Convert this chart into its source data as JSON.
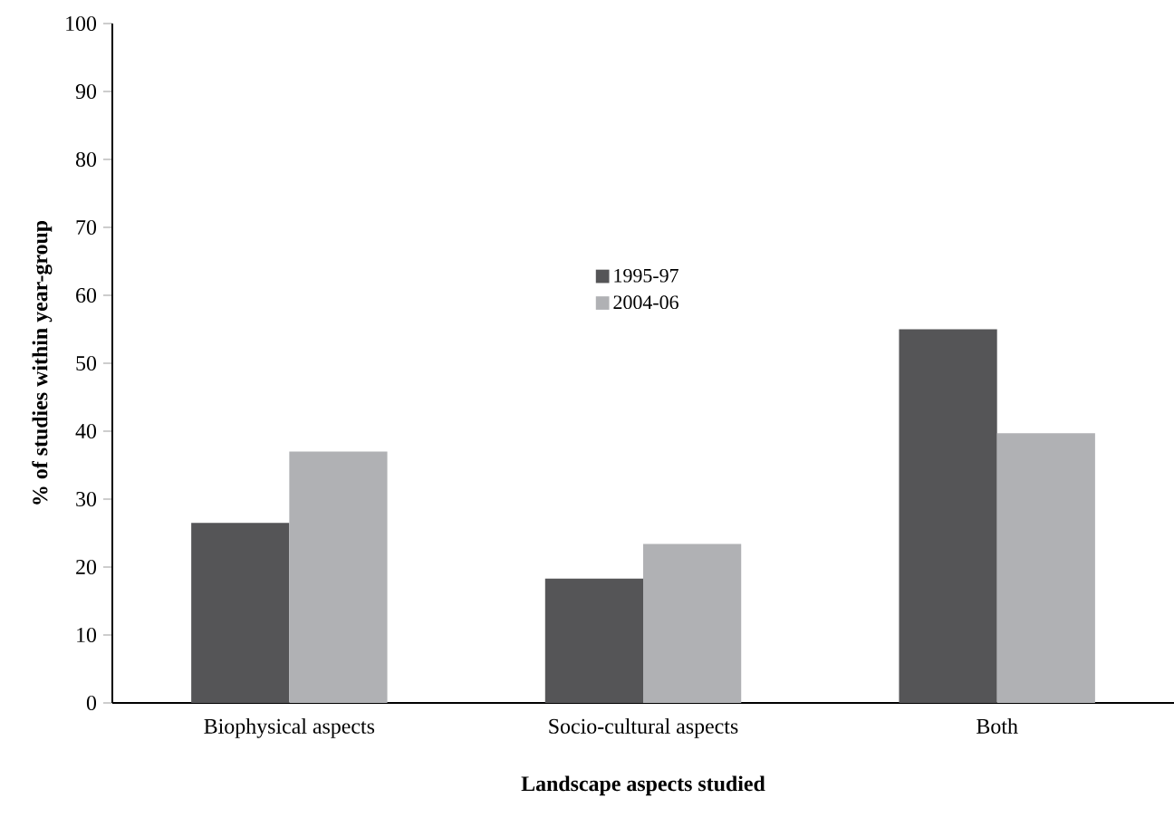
{
  "chart_data": {
    "type": "bar",
    "xlabel": "Landscape aspects studied",
    "ylabel": "%  of studies within year-group",
    "categories": [
      "Biophysical aspects",
      "Socio-cultural aspects",
      "Both"
    ],
    "series": [
      {
        "name": "1995-97",
        "color": "#555557",
        "values": [
          26.5,
          18.3,
          55
        ]
      },
      {
        "name": "2004-06",
        "color": "#b0b1b4",
        "values": [
          37.0,
          23.4,
          39.7
        ]
      }
    ],
    "ylim": [
      0,
      100
    ],
    "yticks": [
      0,
      10,
      20,
      30,
      40,
      50,
      60,
      70,
      80,
      90,
      100
    ],
    "grid": false,
    "legend": "top"
  }
}
